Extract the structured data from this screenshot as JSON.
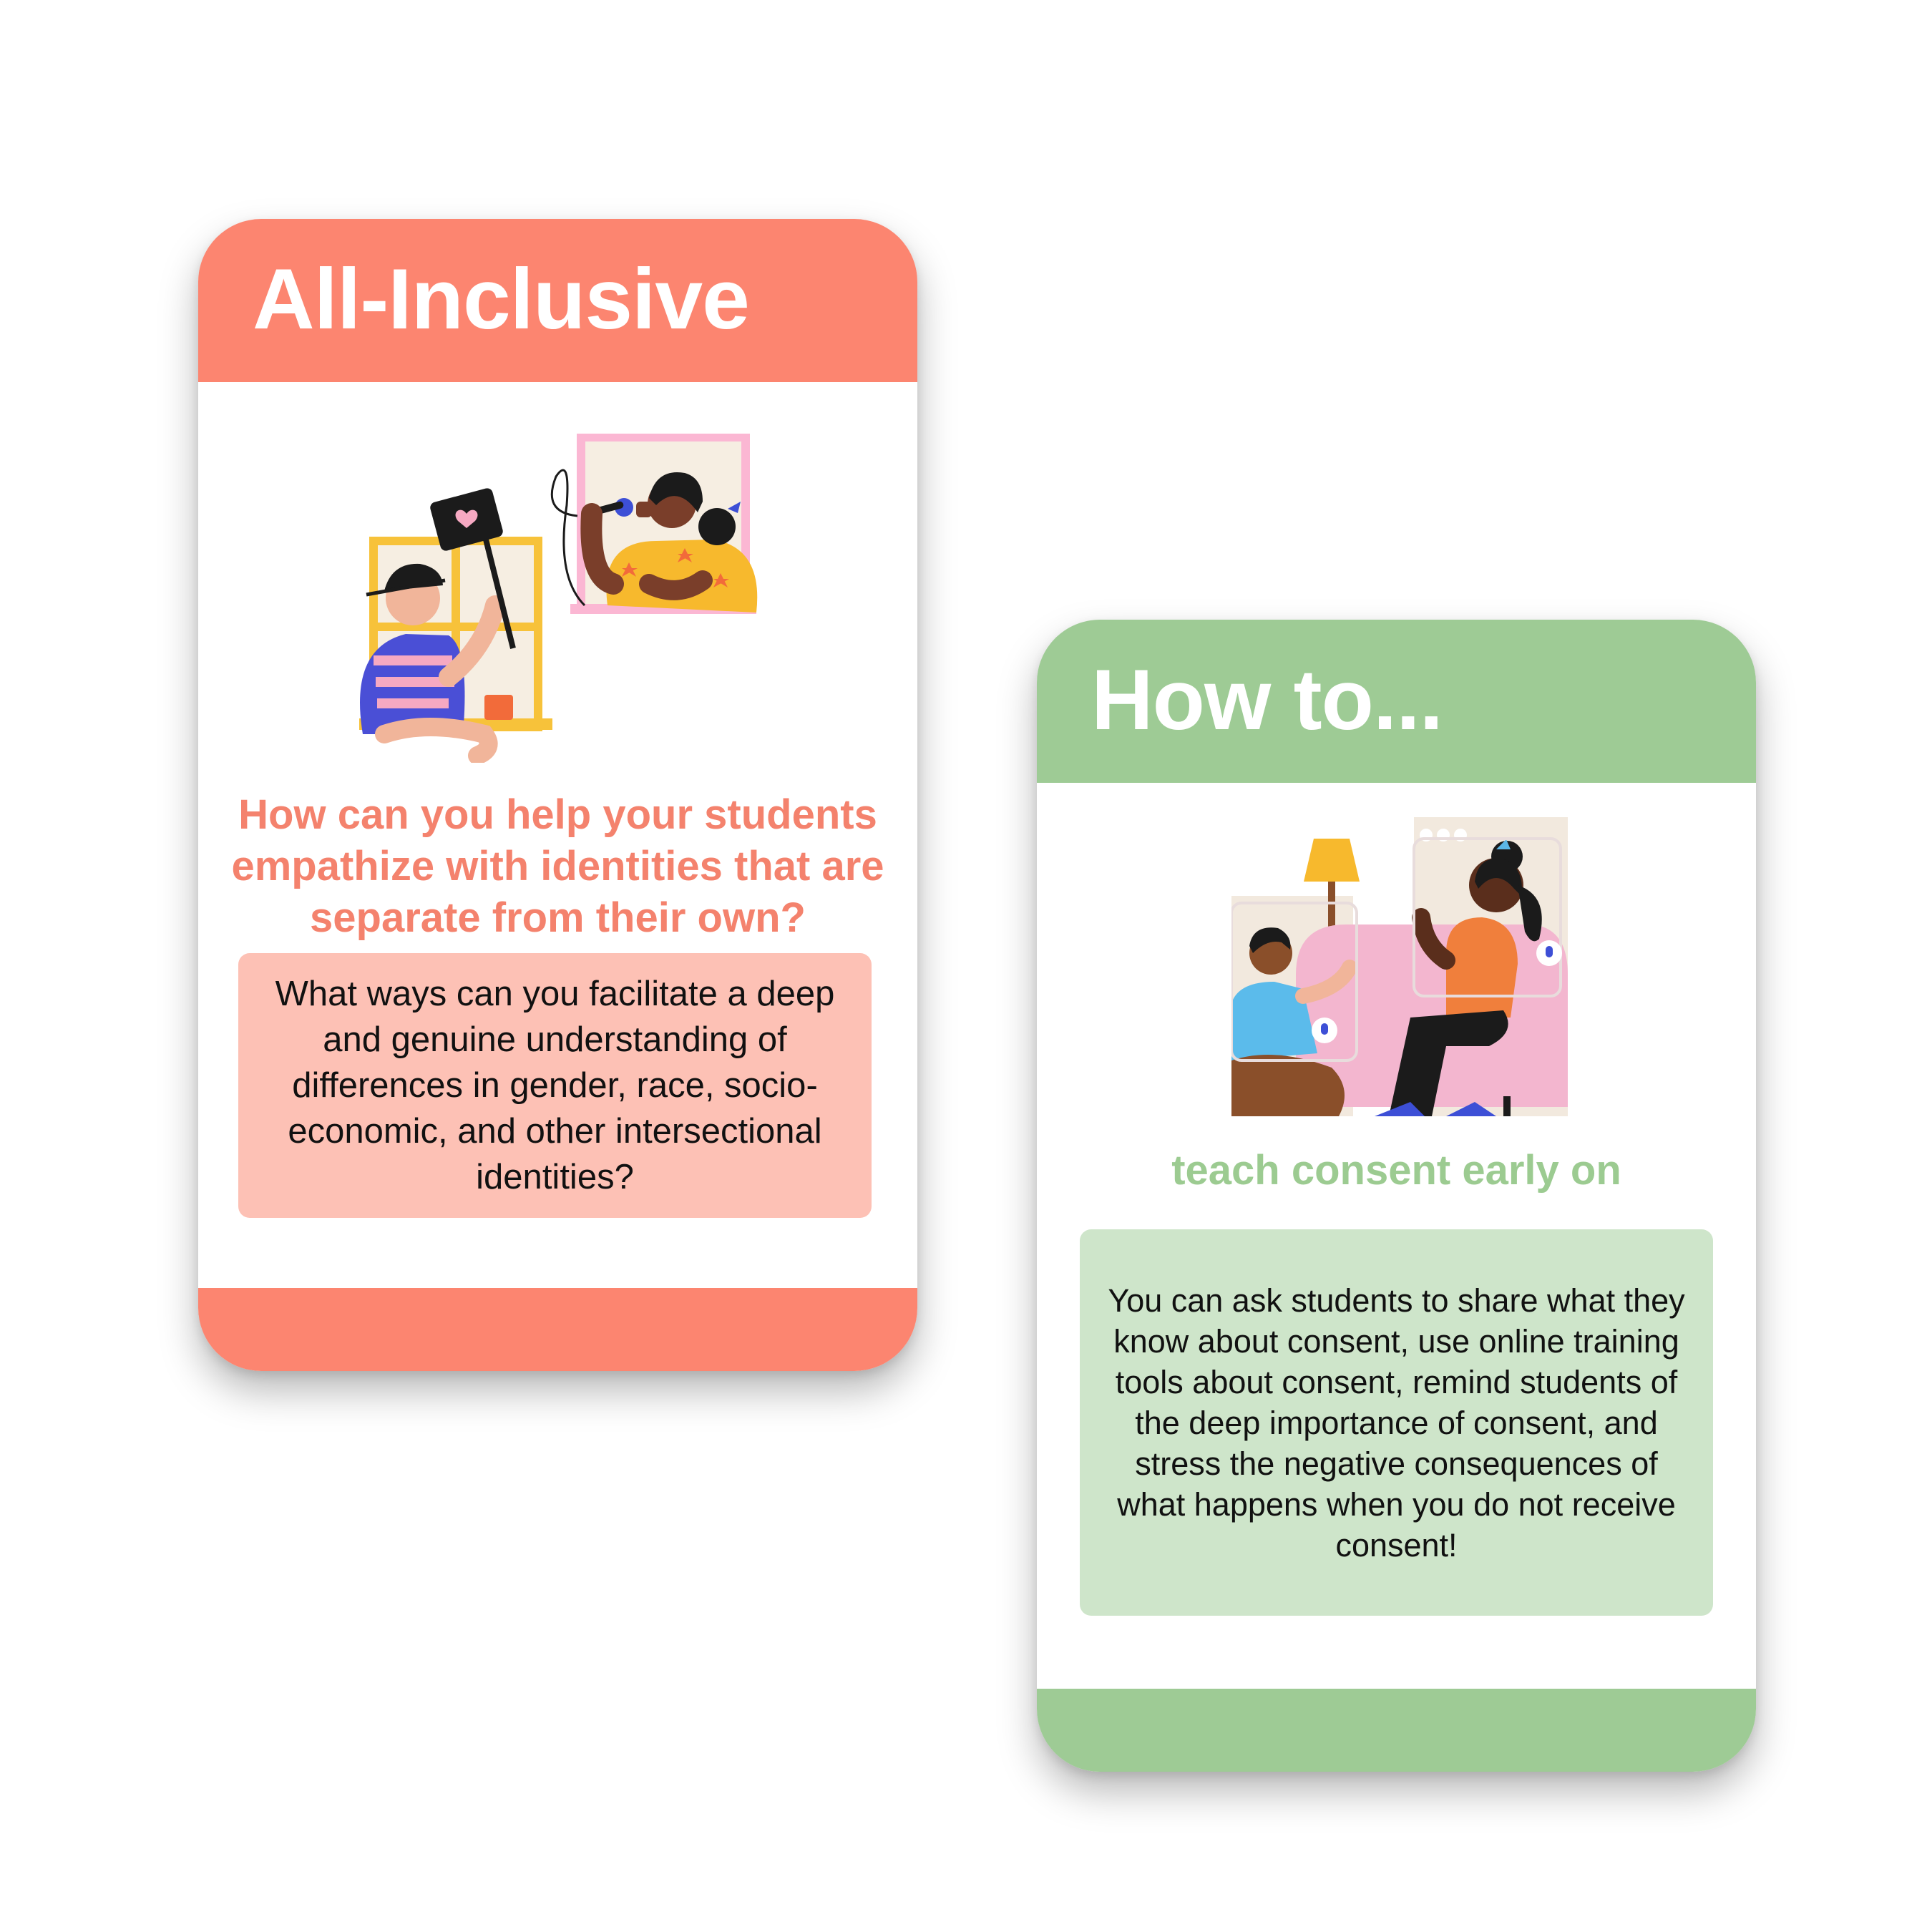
{
  "cards": [
    {
      "title": "All-Inclusive",
      "question": "How can you help your students empathize with identities that are separate from their own?",
      "answer": "What ways can you facilitate a deep and genuine understanding of differences in gender, race, socio-economic, and other intersectional identities?",
      "illustration": "neighbors-at-windows-singing-illustration",
      "accent": "#fc8570",
      "box_color": "#fdc1b5"
    },
    {
      "title": "How to...",
      "question": "teach consent early on",
      "answer": "You can ask students to share what they know about consent, use online training tools about consent, remind students of the deep importance of consent, and stress the negative consequences of what happens when you do not receive consent!",
      "illustration": "video-call-conversation-illustration",
      "accent": "#9ecb95",
      "box_color": "#cee5ca"
    }
  ]
}
